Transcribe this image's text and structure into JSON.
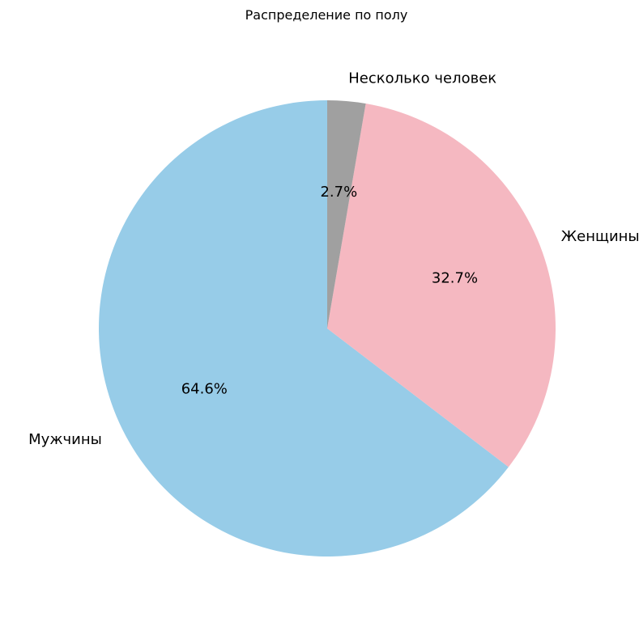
{
  "chart_data": {
    "type": "pie",
    "title": "Распределение по полу",
    "start_angle_deg": 90,
    "direction": "counterclockwise",
    "slices": [
      {
        "label": "Мужчины",
        "value": 64.6,
        "pct_label": "64.6%",
        "color": "#97CCE8"
      },
      {
        "label": "Женщины",
        "value": 32.7,
        "pct_label": "32.7%",
        "color": "#F5B8C1"
      },
      {
        "label": "Несколько человек",
        "value": 2.7,
        "pct_label": "2.7%",
        "color": "#A0A0A0"
      }
    ]
  }
}
